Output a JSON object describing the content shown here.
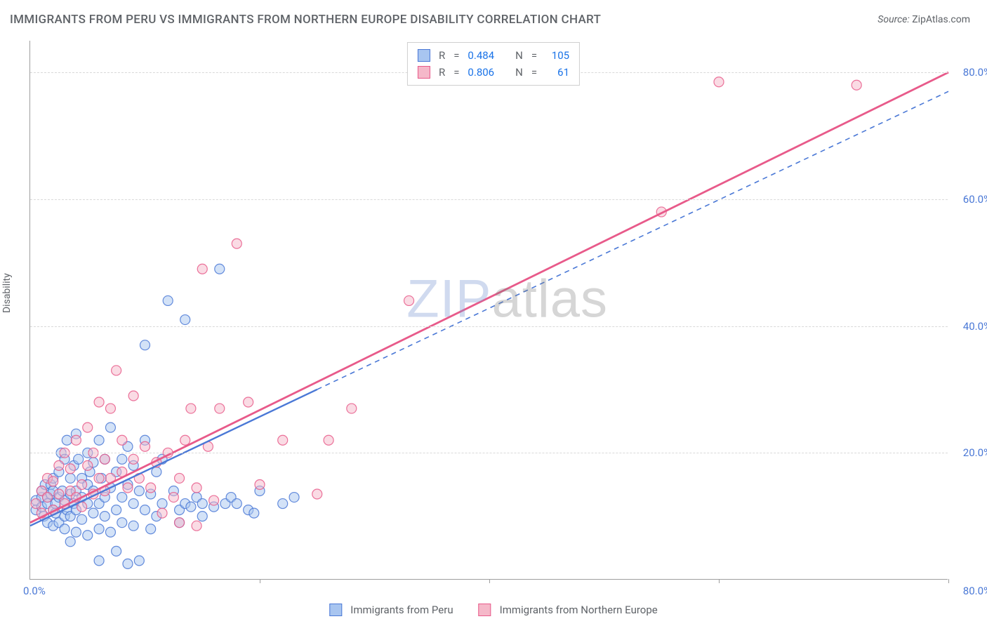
{
  "title": "IMMIGRANTS FROM PERU VS IMMIGRANTS FROM NORTHERN EUROPE DISABILITY CORRELATION CHART",
  "source_label": "Source:",
  "source_name": "ZipAtlas.com",
  "watermark": {
    "left": "ZIP",
    "right": "atlas"
  },
  "ylabel": "Disability",
  "chart": {
    "type": "scatter-with-regression",
    "background_color": "#ffffff",
    "grid_color": "#d9d9d9",
    "axis_color": "#9e9e9e",
    "tick_label_color": "#4a78d6",
    "tick_fontsize": 15,
    "xlim": [
      0,
      80
    ],
    "ylim": [
      0,
      85
    ],
    "y_ticks": [
      20,
      40,
      60,
      80
    ],
    "y_tick_labels": [
      "20.0%",
      "40.0%",
      "60.0%",
      "80.0%"
    ],
    "x_tick_positions": [
      0,
      20,
      40,
      60,
      80
    ],
    "x_min_label": "0.0%",
    "x_max_label": "80.0%",
    "marker_radius": 7,
    "marker_opacity": 0.5,
    "marker_stroke_width": 1.2,
    "series": [
      {
        "id": "peru",
        "label": "Immigrants from Peru",
        "fill": "#a8c5f0",
        "stroke": "#4a78d6",
        "R": "0.484",
        "N": "105",
        "line": {
          "solid": {
            "x1": 0,
            "y1": 8.5,
            "x2": 25,
            "y2": 30
          },
          "dashed": {
            "x1": 25,
            "y1": 30,
            "x2": 80,
            "y2": 77
          },
          "width": 2.4
        },
        "points": [
          [
            0.5,
            11
          ],
          [
            0.5,
            12.5
          ],
          [
            1,
            13
          ],
          [
            1,
            11.5
          ],
          [
            1,
            14
          ],
          [
            1.2,
            10
          ],
          [
            1.3,
            15
          ],
          [
            1.5,
            13
          ],
          [
            1.5,
            12
          ],
          [
            1.5,
            9
          ],
          [
            1.8,
            15
          ],
          [
            1.8,
            13.5
          ],
          [
            2,
            14
          ],
          [
            2,
            11
          ],
          [
            2,
            8.5
          ],
          [
            2,
            16
          ],
          [
            2.2,
            12
          ],
          [
            2.2,
            10.5
          ],
          [
            2.5,
            13
          ],
          [
            2.5,
            17
          ],
          [
            2.5,
            9
          ],
          [
            2.7,
            20
          ],
          [
            2.8,
            14
          ],
          [
            3,
            10
          ],
          [
            3,
            12.5
          ],
          [
            3,
            19
          ],
          [
            3,
            8
          ],
          [
            3.2,
            11
          ],
          [
            3.2,
            22
          ],
          [
            3.5,
            13.5
          ],
          [
            3.5,
            16
          ],
          [
            3.5,
            10
          ],
          [
            3.5,
            6
          ],
          [
            3.8,
            12
          ],
          [
            3.8,
            18
          ],
          [
            4,
            14
          ],
          [
            4,
            23
          ],
          [
            4,
            11
          ],
          [
            4,
            7.5
          ],
          [
            4.2,
            19
          ],
          [
            4.5,
            13
          ],
          [
            4.5,
            16
          ],
          [
            4.5,
            9.5
          ],
          [
            5,
            20
          ],
          [
            5,
            12
          ],
          [
            5,
            15
          ],
          [
            5,
            7
          ],
          [
            5.2,
            17
          ],
          [
            5.5,
            10.5
          ],
          [
            5.5,
            14
          ],
          [
            5.5,
            18.5
          ],
          [
            6,
            12
          ],
          [
            6,
            22
          ],
          [
            6,
            8
          ],
          [
            6,
            3
          ],
          [
            6.2,
            16
          ],
          [
            6.5,
            13
          ],
          [
            6.5,
            19
          ],
          [
            6.5,
            10
          ],
          [
            7,
            14.5
          ],
          [
            7,
            7.5
          ],
          [
            7,
            24
          ],
          [
            7.5,
            11
          ],
          [
            7.5,
            17
          ],
          [
            7.5,
            4.5
          ],
          [
            8,
            13
          ],
          [
            8,
            19
          ],
          [
            8,
            9
          ],
          [
            8.5,
            15
          ],
          [
            8.5,
            2.5
          ],
          [
            8.5,
            21
          ],
          [
            9,
            12
          ],
          [
            9,
            18
          ],
          [
            9,
            8.5
          ],
          [
            9.5,
            14
          ],
          [
            9.5,
            3
          ],
          [
            10,
            11
          ],
          [
            10,
            22
          ],
          [
            10,
            37
          ],
          [
            10.5,
            13.5
          ],
          [
            10.5,
            8
          ],
          [
            11,
            17
          ],
          [
            11,
            10
          ],
          [
            11.5,
            12
          ],
          [
            11.5,
            19
          ],
          [
            12,
            44
          ],
          [
            12.5,
            14
          ],
          [
            13,
            11
          ],
          [
            13,
            9
          ],
          [
            13.5,
            12
          ],
          [
            13.5,
            41
          ],
          [
            14,
            11.5
          ],
          [
            14.5,
            13
          ],
          [
            15,
            12
          ],
          [
            15,
            10
          ],
          [
            16,
            11.5
          ],
          [
            16.5,
            49
          ],
          [
            17,
            12
          ],
          [
            17.5,
            13
          ],
          [
            18,
            12
          ],
          [
            19,
            11
          ],
          [
            19.5,
            10.5
          ],
          [
            20,
            14
          ],
          [
            22,
            12
          ],
          [
            23,
            13
          ]
        ]
      },
      {
        "id": "neur",
        "label": "Immigrants from Northern Europe",
        "fill": "#f5b8c9",
        "stroke": "#e85a8a",
        "R": "0.806",
        "N": "61",
        "line": {
          "solid": {
            "x1": 0,
            "y1": 9,
            "x2": 80,
            "y2": 80
          },
          "width": 2.8
        },
        "points": [
          [
            0.5,
            12
          ],
          [
            1,
            14
          ],
          [
            1,
            10.5
          ],
          [
            1.5,
            13
          ],
          [
            1.5,
            16
          ],
          [
            2,
            11
          ],
          [
            2,
            15.5
          ],
          [
            2.5,
            13.5
          ],
          [
            2.5,
            18
          ],
          [
            3,
            12
          ],
          [
            3,
            20
          ],
          [
            3.5,
            14
          ],
          [
            3.5,
            17.5
          ],
          [
            4,
            13
          ],
          [
            4,
            22
          ],
          [
            4.5,
            15
          ],
          [
            4.5,
            11.5
          ],
          [
            5,
            18
          ],
          [
            5,
            24
          ],
          [
            5.5,
            13.5
          ],
          [
            5.5,
            20
          ],
          [
            6,
            16
          ],
          [
            6,
            28
          ],
          [
            6.5,
            14
          ],
          [
            6.5,
            19
          ],
          [
            7,
            16
          ],
          [
            7,
            27
          ],
          [
            7.5,
            33
          ],
          [
            8,
            17
          ],
          [
            8,
            22
          ],
          [
            8.5,
            14.5
          ],
          [
            9,
            19
          ],
          [
            9,
            29
          ],
          [
            9.5,
            16
          ],
          [
            10,
            21
          ],
          [
            10.5,
            14.5
          ],
          [
            11,
            18.5
          ],
          [
            11.5,
            10.5
          ],
          [
            12,
            20
          ],
          [
            12.5,
            13
          ],
          [
            13,
            16
          ],
          [
            13,
            9
          ],
          [
            13.5,
            22
          ],
          [
            14,
            27
          ],
          [
            14.5,
            14.5
          ],
          [
            14.5,
            8.5
          ],
          [
            15,
            49
          ],
          [
            15.5,
            21
          ],
          [
            16,
            12.5
          ],
          [
            16.5,
            27
          ],
          [
            18,
            53
          ],
          [
            19,
            28
          ],
          [
            20,
            15
          ],
          [
            22,
            22
          ],
          [
            25,
            13.5
          ],
          [
            26,
            22
          ],
          [
            28,
            27
          ],
          [
            33,
            44
          ],
          [
            55,
            58
          ],
          [
            72,
            78
          ],
          [
            60,
            78.5
          ]
        ]
      }
    ]
  },
  "legend_top_labels": {
    "R": "R",
    "N": "N",
    "eq": "="
  },
  "bottom_legend": [
    {
      "series": "peru"
    },
    {
      "series": "neur"
    }
  ]
}
